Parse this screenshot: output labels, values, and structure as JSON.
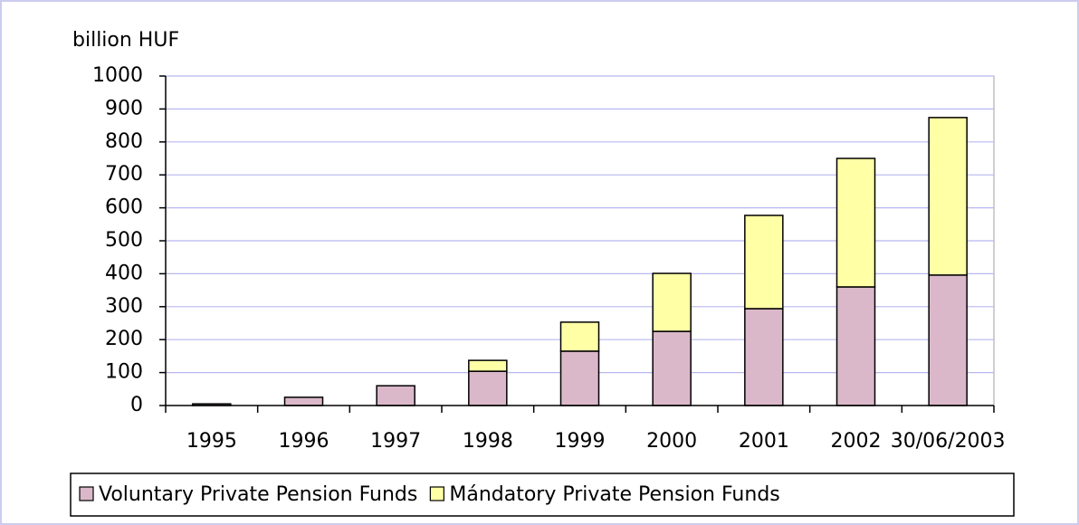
{
  "chart_data": {
    "type": "stacked_bar",
    "y_unit_label": "billion HUF",
    "categories": [
      "1995",
      "1996",
      "1997",
      "1998",
      "1999",
      "2000",
      "2001",
      "2002",
      "30/06/2003"
    ],
    "series": [
      {
        "name": "Voluntary Private Pension Funds",
        "color": "#dab8c9",
        "values": [
          5,
          25,
          60,
          104,
          165,
          225,
          294,
          360,
          396
        ]
      },
      {
        "name": "Mándatory Private Pension Funds",
        "color": "#ffffa6",
        "values": [
          0,
          0,
          0,
          33,
          88,
          176,
          283,
          390,
          478
        ]
      }
    ],
    "ylim": [
      0,
      1000
    ],
    "yticks": [
      0,
      100,
      200,
      300,
      400,
      500,
      600,
      700,
      800,
      900,
      1000
    ],
    "grid": true,
    "legend": "bottom"
  }
}
